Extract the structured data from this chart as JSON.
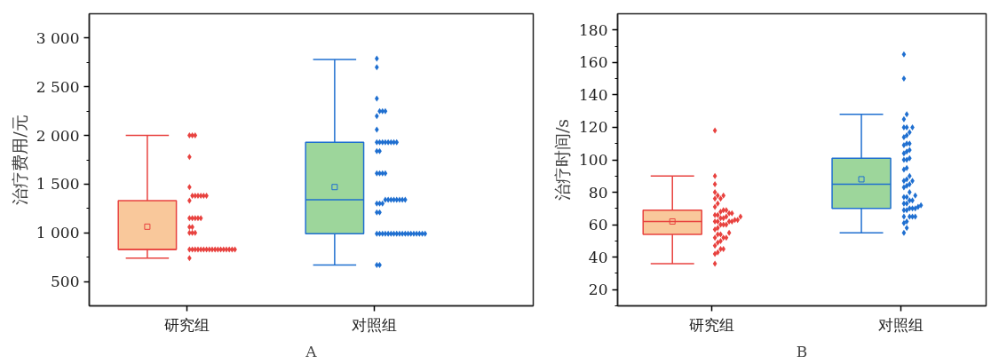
{
  "chart_data": [
    {
      "type": "box",
      "title": "A",
      "ylabel": "治疗费用/元",
      "categories": [
        "研究组",
        "对照组"
      ],
      "ylim": [
        250,
        3250
      ],
      "grid": false,
      "marker": "diamond",
      "yticks": [
        {
          "value": 500,
          "label": "500"
        },
        {
          "value": 750,
          "label": null
        },
        {
          "value": 1000,
          "label": "1 000"
        },
        {
          "value": 1250,
          "label": null
        },
        {
          "value": 1500,
          "label": "1 500"
        },
        {
          "value": 1750,
          "label": null
        },
        {
          "value": 2000,
          "label": "2 000"
        },
        {
          "value": 2250,
          "label": null
        },
        {
          "value": 2500,
          "label": "2 500"
        },
        {
          "value": 2750,
          "label": null
        },
        {
          "value": 3000,
          "label": "3 000"
        }
      ],
      "series": [
        {
          "colors": [
            "#f9c89b",
            "#9dd69b"
          ],
          "boxes": [
            {
              "low": 740,
              "q1": 830,
              "median": 830,
              "q3": 1330,
              "high": 2000,
              "mean": 1063
            },
            {
              "low": 670,
              "q1": 990,
              "median": 1340,
              "q3": 1930,
              "high": 2780,
              "mean": 1470
            }
          ]
        },
        {
          "type": "scatter",
          "color": "#e8423f",
          "x": [
            "研究组",
            "研究组",
            "研究组",
            "研究组",
            "研究组",
            "研究组",
            "研究组",
            "研究组",
            "研究组",
            "研究组",
            "研究组",
            "研究组",
            "研究组",
            "研究组",
            "研究组",
            "研究组",
            "研究组",
            "研究组",
            "研究组",
            "研究组",
            "研究组",
            "研究组",
            "研究组",
            "研究组",
            "研究组",
            "研究组",
            "研究组",
            "研究组",
            "研究组",
            "研究组",
            "研究组",
            "研究组",
            "研究组",
            "研究组",
            "研究组",
            "研究组",
            "研究组",
            "研究组",
            "研究组",
            "研究组"
          ],
          "values": [
            2000,
            2000,
            2000,
            1780,
            1470,
            1380,
            1380,
            1380,
            1380,
            1380,
            1380,
            1330,
            1150,
            1150,
            1150,
            1150,
            1150,
            1060,
            1060,
            1000,
            1000,
            1000,
            830,
            830,
            830,
            830,
            830,
            830,
            830,
            830,
            830,
            830,
            830,
            830,
            830,
            830,
            830,
            830,
            830,
            740
          ]
        },
        {
          "type": "scatter",
          "color": "#1f6fd0",
          "x": [
            "对照组",
            "对照组",
            "对照组",
            "对照组",
            "对照组",
            "对照组",
            "对照组",
            "对照组",
            "对照组",
            "对照组",
            "对照组",
            "对照组",
            "对照组",
            "对照组",
            "对照组",
            "对照组",
            "对照组",
            "对照组",
            "对照组",
            "对照组",
            "对照组",
            "对照组",
            "对照组",
            "对照组",
            "对照组",
            "对照组",
            "对照组",
            "对照组",
            "对照组",
            "对照组",
            "对照组",
            "对照组",
            "对照组",
            "对照组",
            "对照组",
            "对照组",
            "对照组",
            "对照组",
            "对照组",
            "对照组",
            "对照组",
            "对照组",
            "对照组",
            "对照组",
            "对照组",
            "对照组",
            "对照组",
            "对照组",
            "对照组",
            "对照组",
            "对照组",
            "对照组",
            "对照组",
            "对照组",
            "对照组"
          ],
          "values": [
            2790,
            2700,
            2380,
            2250,
            2250,
            2250,
            2200,
            2060,
            1930,
            1930,
            1930,
            1930,
            1930,
            1930,
            1930,
            1930,
            1840,
            1840,
            1610,
            1610,
            1610,
            1610,
            1340,
            1340,
            1340,
            1340,
            1340,
            1340,
            1340,
            1340,
            1300,
            1300,
            1300,
            1210,
            1210,
            990,
            990,
            990,
            990,
            990,
            990,
            990,
            990,
            990,
            990,
            990,
            990,
            990,
            990,
            990,
            990,
            990,
            990,
            670,
            670
          ]
        }
      ]
    },
    {
      "type": "box",
      "title": "B",
      "ylabel": "治疗时间/s",
      "categories": [
        "研究组",
        "对照组"
      ],
      "ylim": [
        10,
        190
      ],
      "grid": false,
      "marker": "diamond",
      "yticks": [
        {
          "value": 10,
          "label": null
        },
        20,
        {
          "value": 30,
          "label": null
        },
        40,
        {
          "value": 50,
          "label": null
        },
        60,
        {
          "value": 70,
          "label": null
        },
        80,
        {
          "value": 90,
          "label": null
        },
        100,
        {
          "value": 110,
          "label": null
        },
        120,
        {
          "value": 130,
          "label": null
        },
        140,
        {
          "value": 150,
          "label": null
        },
        160,
        {
          "value": 170,
          "label": null
        },
        180
      ],
      "series": [
        {
          "colors": [
            "#f9c89b",
            "#9dd69b"
          ],
          "boxes": [
            {
              "low": 36,
              "q1": 54,
              "median": 62,
              "q3": 69,
              "high": 90,
              "mean": 62
            },
            {
              "low": 55,
              "q1": 70,
              "median": 85,
              "q3": 101,
              "high": 128,
              "mean": 88
            }
          ]
        },
        {
          "type": "scatter",
          "color": "#e8423f",
          "x": [
            "研究组",
            "研究组",
            "研究组",
            "研究组",
            "研究组",
            "研究组",
            "研究组",
            "研究组",
            "研究组",
            "研究组",
            "研究组",
            "研究组",
            "研究组",
            "研究组",
            "研究组",
            "研究组",
            "研究组",
            "研究组",
            "研究组",
            "研究组",
            "研究组",
            "研究组",
            "研究组",
            "研究组",
            "研究组",
            "研究组",
            "研究组",
            "研究组",
            "研究组",
            "研究组",
            "研究组",
            "研究组",
            "研究组",
            "研究组",
            "研究组",
            "研究组",
            "研究组",
            "研究组",
            "研究组",
            "研究组",
            "研究组",
            "研究组",
            "研究组",
            "研究组",
            "研究组",
            "研究组"
          ],
          "values": [
            118,
            90,
            85,
            80,
            78,
            76,
            76,
            78,
            73,
            71,
            69,
            69,
            68,
            66,
            65,
            63,
            64,
            66,
            67,
            65,
            67,
            62,
            60,
            62,
            60,
            62,
            63,
            64,
            62,
            57,
            58,
            55,
            54,
            60,
            54,
            52,
            52,
            50,
            52,
            49,
            47,
            45,
            45,
            42,
            43,
            36
          ]
        },
        {
          "type": "scatter",
          "color": "#1f6fd0",
          "x": [
            "对照组",
            "对照组",
            "对照组",
            "对照组",
            "对照组",
            "对照组",
            "对照组",
            "对照组",
            "对照组",
            "对照组",
            "对照组",
            "对照组",
            "对照组",
            "对照组",
            "对照组",
            "对照组",
            "对照组",
            "对照组",
            "对照组",
            "对照组",
            "对照组",
            "对照组",
            "对照组",
            "对照组",
            "对照组",
            "对照组",
            "对照组",
            "对照组",
            "对照组",
            "对照组",
            "对照组",
            "对照组",
            "对照组",
            "对照组",
            "对照组",
            "对照组",
            "对照组",
            "对照组",
            "对照组",
            "对照组",
            "对照组",
            "对照组",
            "对照组",
            "对照组",
            "对照组",
            "对照组",
            "对照组",
            "对照组",
            "对照组",
            "对照组",
            "对照组"
          ],
          "values": [
            165,
            150,
            128,
            125,
            120,
            120,
            120,
            117,
            114,
            115,
            110,
            110,
            109,
            105,
            106,
            104,
            101,
            100,
            100,
            94,
            95,
            90,
            87,
            84,
            85,
            87,
            88,
            83,
            80,
            77,
            78,
            73,
            77,
            75,
            75,
            72,
            70,
            70,
            69,
            69,
            70,
            65,
            65,
            65,
            65,
            62,
            61,
            58,
            55,
            73,
            71
          ]
        }
      ]
    }
  ]
}
